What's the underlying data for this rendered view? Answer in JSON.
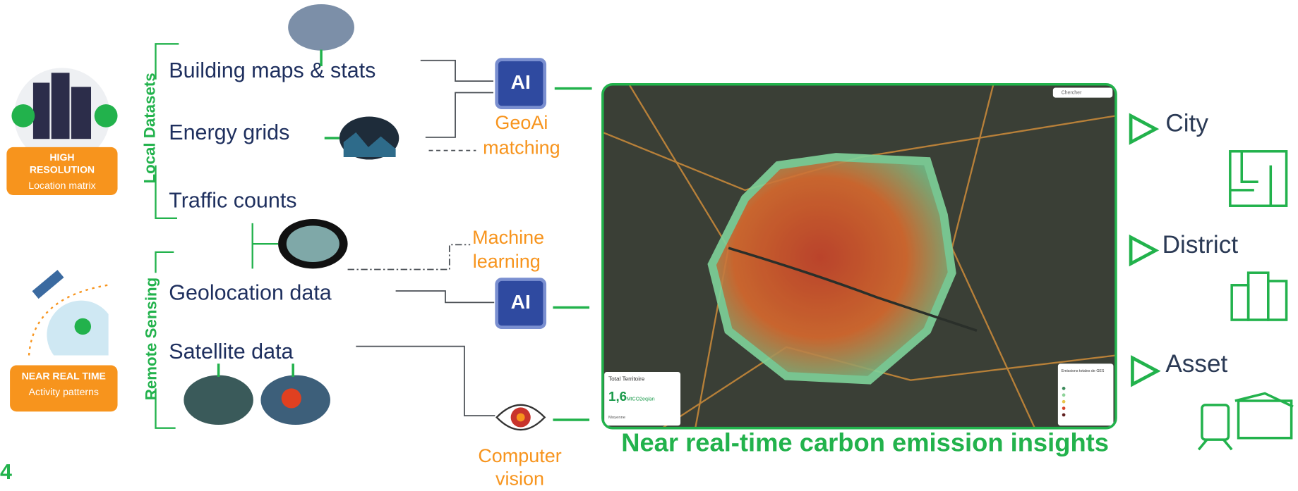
{
  "page_number": "4",
  "sources": {
    "high_resolution": {
      "title": [
        "HIGH",
        "RESOLUTION"
      ],
      "subtitle": "Location matrix"
    },
    "near_real_time": {
      "title": "NEAR REAL TIME",
      "subtitle": "Activity patterns"
    }
  },
  "groups": {
    "local": "Local Datasets",
    "remote": "Remote Sensing"
  },
  "datasets": [
    "Building maps & stats",
    "Energy grids",
    "Traffic counts",
    "Geolocation data",
    "Satellite data"
  ],
  "processors": [
    {
      "icon": "AI",
      "label": [
        "GeoAi",
        "matching"
      ]
    },
    {
      "icon": "AI",
      "label": [
        "Machine",
        "learning"
      ]
    },
    {
      "icon": null,
      "label": [
        "Computer",
        "vision"
      ]
    }
  ],
  "map": {
    "search": "Chercher",
    "total_title": "Total Territoire",
    "total_value": "1,6",
    "total_unit": "MtCO2eq/an",
    "average": "Moyenne",
    "legend_title": "Emissions totales de GES"
  },
  "caption": "Near real-time carbon emission insights",
  "outputs": [
    "City",
    "District",
    "Asset"
  ]
}
